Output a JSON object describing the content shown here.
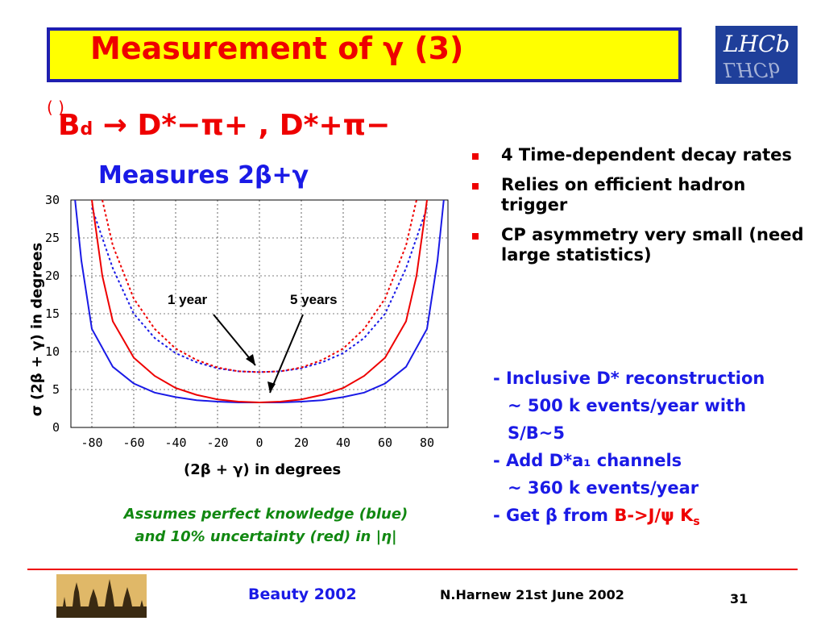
{
  "slide": {
    "title": "Measurement of γ (3)",
    "title_overbar": "−",
    "logo_text": "LHCb",
    "decay": {
      "meson": "B",
      "meson_sub": "d",
      "paren": "( )",
      "arrow": "→",
      "channel1": "D*−π+",
      "separator": ",",
      "channel2": "D*+π−"
    },
    "measures": "Measures 2β+γ",
    "bullets": [
      "4 Time-dependent decay rates",
      "Relies on efficient hadron trigger",
      "CP asymmetry very small (need large statistics)"
    ],
    "notes": [
      "- Inclusive D* reconstruction",
      "~ 500 k events/year with",
      "S/B~5",
      "- Add D*a₁ channels",
      "~ 360 k events/year"
    ],
    "note_last_prefix": "- Get β from ",
    "note_last_red": "B->J/ψ K",
    "note_last_red_sub": "s",
    "caption_line1": "Assumes perfect knowledge (blue)",
    "caption_line2": "and 10% uncertainty (red) in |η|",
    "footer": {
      "left": "Beauty 2002",
      "middle": "N.Harnew  21st June 2002",
      "page": "31"
    }
  },
  "chart_data": {
    "type": "line",
    "xlabel": "(2β + γ) in degrees",
    "ylabel": "σ (2β + γ) in degrees",
    "xlim": [
      -90,
      90
    ],
    "ylim": [
      0,
      30
    ],
    "x_ticks": [
      -80,
      -60,
      -40,
      -20,
      0,
      20,
      40,
      60,
      80
    ],
    "y_ticks": [
      0,
      5,
      10,
      15,
      20,
      25,
      30
    ],
    "grid": true,
    "annotations": [
      "1 year",
      "5 years"
    ],
    "series": [
      {
        "name": "blue 1 year",
        "color": "#1a1ae6",
        "style": "dotted",
        "min": 7.3,
        "x": [
          -80,
          -70,
          -60,
          -50,
          -40,
          -30,
          -20,
          -10,
          0,
          10,
          20,
          30,
          40,
          50,
          60,
          70,
          80
        ],
        "y": [
          29,
          21,
          15,
          11.8,
          9.8,
          8.6,
          7.8,
          7.4,
          7.3,
          7.4,
          7.8,
          8.6,
          9.8,
          11.8,
          15,
          21,
          29
        ]
      },
      {
        "name": "red 1 year",
        "color": "#ee0000",
        "style": "dotted",
        "min": 7.3,
        "x": [
          -75,
          -70,
          -60,
          -50,
          -40,
          -30,
          -20,
          -10,
          0,
          10,
          20,
          30,
          40,
          50,
          60,
          70,
          75
        ],
        "y": [
          30,
          24,
          17,
          13,
          10.4,
          8.9,
          7.9,
          7.4,
          7.3,
          7.4,
          7.9,
          8.9,
          10.4,
          13,
          17,
          24,
          30
        ]
      },
      {
        "name": "blue 5 years",
        "color": "#1a1ae6",
        "style": "solid",
        "min": 3.3,
        "x": [
          -88,
          -85,
          -80,
          -70,
          -60,
          -50,
          -40,
          -30,
          -20,
          -10,
          0,
          10,
          20,
          30,
          40,
          50,
          60,
          70,
          80,
          85,
          88
        ],
        "y": [
          30,
          22,
          13,
          8,
          5.8,
          4.6,
          4,
          3.6,
          3.4,
          3.3,
          3.3,
          3.3,
          3.4,
          3.6,
          4,
          4.6,
          5.8,
          8,
          13,
          22,
          30
        ]
      },
      {
        "name": "red 5 years",
        "color": "#ee0000",
        "style": "solid",
        "min": 3.3,
        "x": [
          -80,
          -75,
          -70,
          -60,
          -50,
          -40,
          -30,
          -20,
          -10,
          0,
          10,
          20,
          30,
          40,
          50,
          60,
          70,
          75,
          80
        ],
        "y": [
          30,
          20,
          14,
          9.2,
          6.8,
          5.2,
          4.3,
          3.7,
          3.4,
          3.3,
          3.4,
          3.7,
          4.3,
          5.2,
          6.8,
          9.2,
          14,
          20,
          30
        ]
      }
    ]
  }
}
